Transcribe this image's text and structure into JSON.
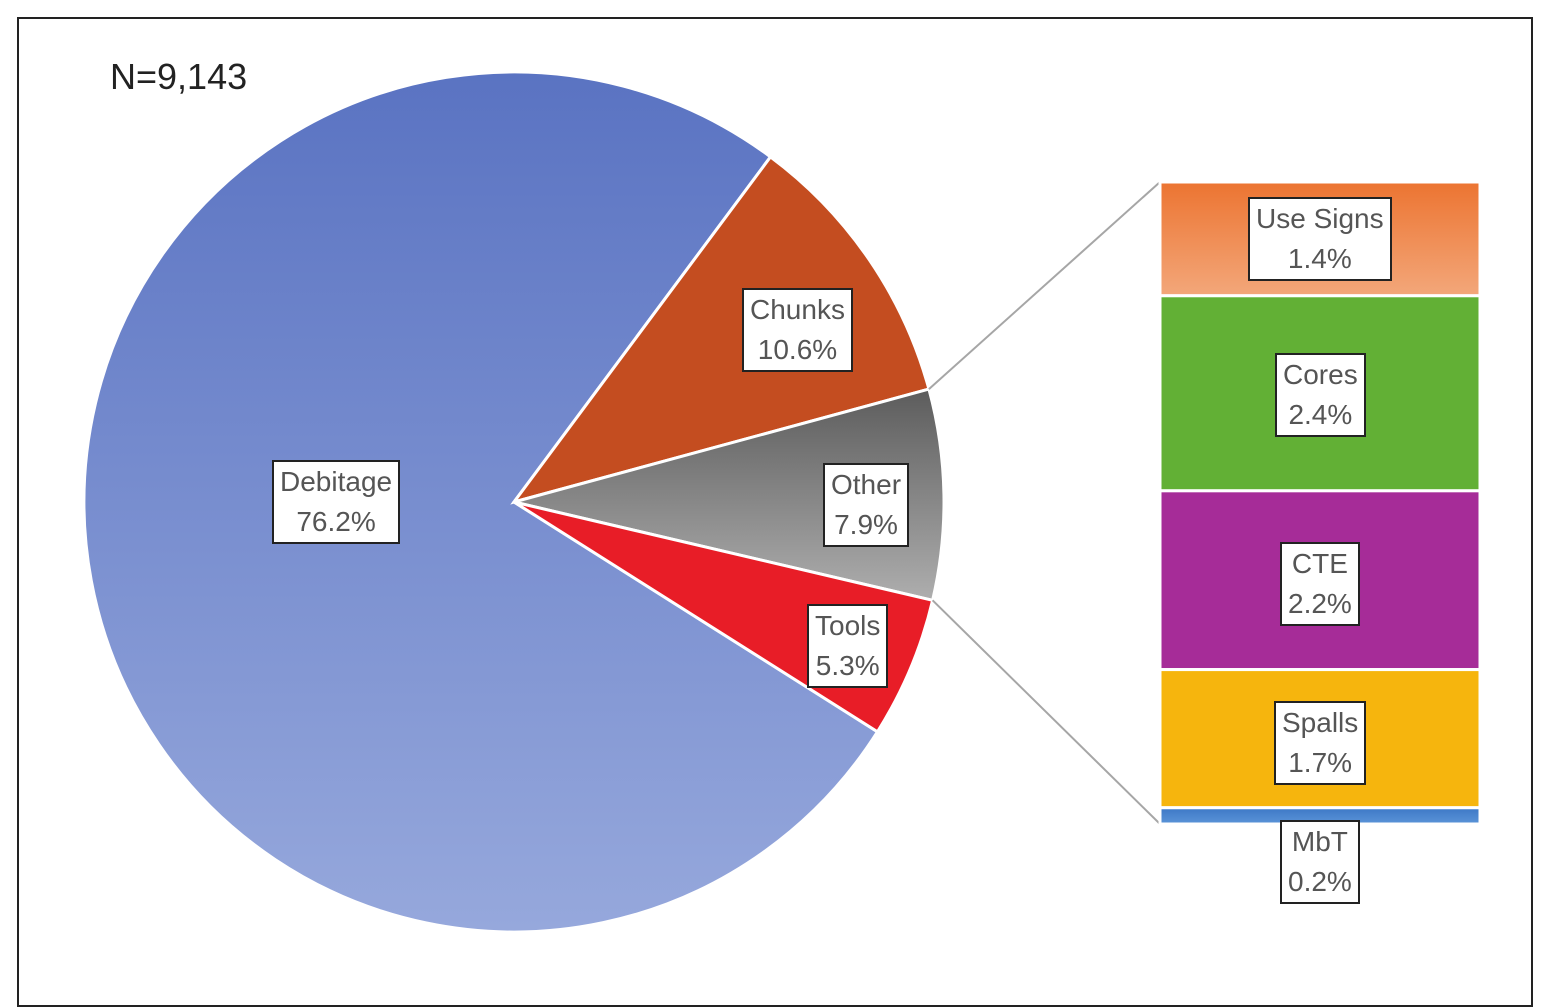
{
  "chart_data": {
    "type": "bar-of-pie",
    "title": "",
    "annotation": "N=9,143",
    "pie": {
      "slices": [
        {
          "name": "Debitage",
          "value": 76.2,
          "label": "76.2%",
          "color": "#5a73c2",
          "color2": "#96a8dc"
        },
        {
          "name": "Chunks",
          "value": 10.6,
          "label": "10.6%",
          "color": "#c44d20",
          "color2": "#c44d20"
        },
        {
          "name": "Other",
          "value": 7.9,
          "label": "7.9%",
          "color": "#5c5c5c",
          "color2": "#aeaeae"
        },
        {
          "name": "Tools",
          "value": 5.3,
          "label": "5.3%",
          "color": "#e81d27",
          "color2": "#e81d27"
        }
      ]
    },
    "bar": {
      "parent": "Other",
      "segments": [
        {
          "name": "Use Signs",
          "value": 1.4,
          "label": "1.4%",
          "color": "#ec7431",
          "color2": "#f3a77a"
        },
        {
          "name": "Cores",
          "value": 2.4,
          "label": "2.4%",
          "color": "#62b035",
          "color2": "#62b035"
        },
        {
          "name": "CTE",
          "value": 2.2,
          "label": "2.2%",
          "color": "#a62c98",
          "color2": "#a62c98"
        },
        {
          "name": "Spalls",
          "value": 1.7,
          "label": "1.7%",
          "color": "#f6b50d",
          "color2": "#f6b50d"
        },
        {
          "name": "MbT",
          "value": 0.2,
          "label": "0.2%",
          "color": "#3d78c6",
          "color2": "#5b94d8"
        }
      ]
    }
  }
}
